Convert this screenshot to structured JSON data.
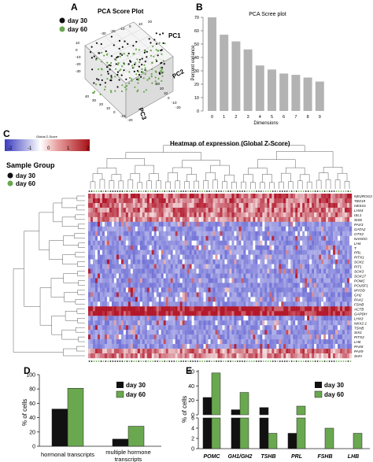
{
  "panels": {
    "A": "A",
    "B": "B",
    "C": "C",
    "D": "D",
    "E": "E"
  },
  "colors": {
    "day30": "#111111",
    "day60": "#6aa84f",
    "bar_grey": "#b3b3b3",
    "heat_low": "#6b6bd6",
    "heat_mid": "#ffffff",
    "heat_high": "#b2182b"
  },
  "panel_a": {
    "title": "PCA Score Plot",
    "legend": [
      "day 30",
      "day 60"
    ],
    "axes": {
      "pc1": "PC1",
      "pc2": "PC2",
      "pc3": "PC3"
    },
    "ticks_top": [
      "-30",
      "-20",
      "-10",
      "0",
      "10",
      "20"
    ],
    "ticks_left": [
      "10",
      "0",
      "-10",
      "-20",
      "-30"
    ],
    "ticks_bottom": [
      "40",
      "30",
      "20",
      "10",
      "0",
      "-10",
      "-20"
    ],
    "ticks_right": [
      "30",
      "20",
      "10",
      "0",
      "-10",
      "-20"
    ]
  },
  "panel_c": {
    "colorbar_title": "Global Z-Score",
    "colorbar_ticks": [
      "-2",
      "-1",
      "0",
      "1",
      "2"
    ],
    "sample_group_title": "Sample Group",
    "legend": [
      "day 30",
      "day 60"
    ],
    "heatmap_title": "Heatmap of expression (Global Z-Score)",
    "genes": [
      "NEUROG3",
      "TBX19",
      "HESX1",
      "LHX4",
      "ISL1",
      "SIX6",
      "PAX3",
      "GATA2",
      "OTX2",
      "NANOG",
      "LH4",
      "T",
      "PRL",
      "PITX1",
      "SOX2",
      "PIT1",
      "SOX3",
      "SOX17",
      "POMC",
      "POU5F1",
      "MYOD",
      "GH2",
      "PAX2",
      "FSHB",
      "ACTB",
      "GAPDH",
      "LHX3",
      "NKX2-1",
      "TSHB",
      "SIX1",
      "PITX2",
      "LH6",
      "PAX6",
      "PAX9",
      "SHH"
    ]
  },
  "chart_data": [
    {
      "type": "scatter",
      "title": "PCA Score Plot",
      "series": [
        {
          "name": "day 30"
        },
        {
          "name": "day 60"
        }
      ]
    },
    {
      "type": "bar",
      "title": "PCA Scree plot",
      "xlabel": "Dimensions",
      "ylabel": "Percent variance",
      "categories": [
        "0",
        "1",
        "2",
        "3",
        "4",
        "5",
        "6",
        "7",
        "8",
        "9"
      ],
      "values": [
        70,
        57,
        52,
        46,
        34,
        31,
        28,
        27,
        25,
        22
      ],
      "ylim": [
        0,
        70
      ],
      "yticks": [
        "0",
        "10",
        "20",
        "30",
        "40",
        "50",
        "60",
        "70"
      ]
    },
    {
      "type": "heatmap",
      "title": "Heatmap of expression (Global Z-Score)"
    },
    {
      "type": "bar",
      "ylabel": "% of cells",
      "categories": [
        "hormonal transcripts",
        "multiple hormone transcripts"
      ],
      "series": [
        {
          "name": "day 30",
          "values": [
            52,
            10
          ]
        },
        {
          "name": "day 60",
          "values": [
            81,
            28
          ]
        }
      ],
      "ylim": [
        0,
        100
      ],
      "yticks": [
        "0",
        "20",
        "40",
        "60",
        "80",
        "100"
      ]
    },
    {
      "type": "bar",
      "ylabel": "% of cells",
      "categories": [
        "POMC",
        "GH1/GH2",
        "TSHB",
        "PRL",
        "FSHB",
        "LHB"
      ],
      "series": [
        {
          "name": "day 30",
          "values": [
            24,
            7,
            10,
            3,
            0,
            0
          ]
        },
        {
          "name": "day 60",
          "values": [
            58,
            31,
            3,
            12,
            4,
            3
          ]
        }
      ],
      "yticks_upper": [
        "0",
        "20",
        "40",
        "60"
      ],
      "yticks_lower": [
        "0",
        "2",
        "4",
        "6"
      ]
    }
  ]
}
